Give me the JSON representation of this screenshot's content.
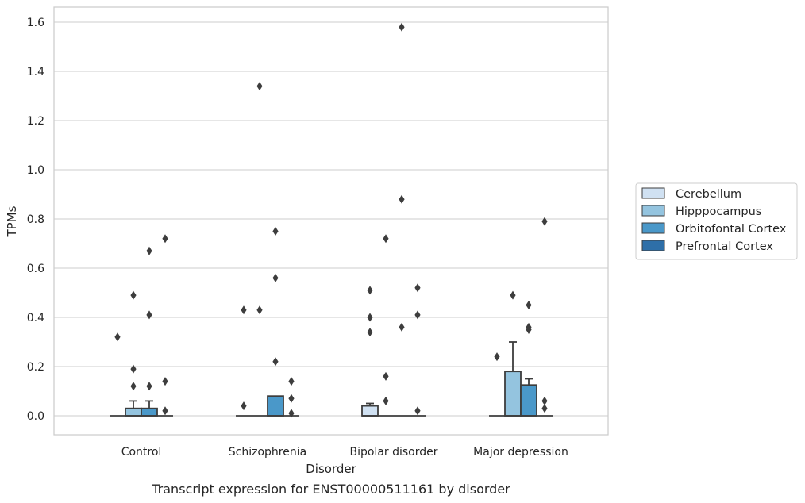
{
  "chart_data": {
    "type": "box",
    "caption": "Transcript expression for ENST00000511161 by disorder",
    "xlabel": "Disorder",
    "ylabel": "TPMs",
    "ylim": [
      -0.08,
      1.66
    ],
    "yticks": [
      0.0,
      0.2,
      0.4,
      0.6,
      0.8,
      1.0,
      1.2,
      1.4,
      1.6
    ],
    "ytick_labels": [
      "0.0",
      "0.2",
      "0.4",
      "0.6",
      "0.8",
      "1.0",
      "1.2",
      "1.4",
      "1.6"
    ],
    "grid": "horizontal",
    "legend_position": "right",
    "categories": [
      "Control",
      "Schizophrenia",
      "Bipolar disorder",
      "Major depression"
    ],
    "series": [
      {
        "name": "Cerebellum",
        "color": "#d0e1f2",
        "boxes": [
          {
            "q1": 0,
            "median": 0,
            "q3": 0,
            "whisker_low": 0,
            "whisker_high": 0,
            "outliers": [
              0.32
            ]
          },
          {
            "q1": 0,
            "median": 0,
            "q3": 0,
            "whisker_low": 0,
            "whisker_high": 0,
            "outliers": [
              0.43,
              0.04
            ]
          },
          {
            "q1": 0,
            "median": 0,
            "q3": 0.04,
            "whisker_low": 0,
            "whisker_high": 0.05,
            "outliers": [
              0.51,
              0.4,
              0.34
            ]
          },
          {
            "q1": 0,
            "median": 0,
            "q3": 0,
            "whisker_low": 0,
            "whisker_high": 0,
            "outliers": [
              0.24
            ]
          }
        ]
      },
      {
        "name": "Hipppocampus",
        "color": "#94c4df",
        "boxes": [
          {
            "q1": 0,
            "median": 0,
            "q3": 0.03,
            "whisker_low": 0,
            "whisker_high": 0.06,
            "outliers": [
              0.49,
              0.19,
              0.12
            ]
          },
          {
            "q1": 0,
            "median": 0,
            "q3": 0,
            "whisker_low": 0,
            "whisker_high": 0,
            "outliers": [
              0.43,
              1.34
            ]
          },
          {
            "q1": 0,
            "median": 0,
            "q3": 0,
            "whisker_low": 0,
            "whisker_high": 0,
            "outliers": [
              0.72,
              0.16,
              0.06
            ]
          },
          {
            "q1": 0,
            "median": 0,
            "q3": 0.18,
            "whisker_low": 0,
            "whisker_high": 0.3,
            "outliers": [
              0.49
            ]
          }
        ]
      },
      {
        "name": "Orbitofontal Cortex",
        "color": "#4a98c9",
        "boxes": [
          {
            "q1": 0,
            "median": 0,
            "q3": 0.03,
            "whisker_low": 0,
            "whisker_high": 0.06,
            "outliers": [
              0.67,
              0.41,
              0.12
            ]
          },
          {
            "q1": 0,
            "median": 0,
            "q3": 0.08,
            "whisker_low": 0,
            "whisker_high": 0.08,
            "outliers": [
              0.75,
              0.56,
              0.22
            ]
          },
          {
            "q1": 0,
            "median": 0,
            "q3": 0,
            "whisker_low": 0,
            "whisker_high": 0,
            "outliers": [
              1.58,
              0.88,
              0.36
            ]
          },
          {
            "q1": 0,
            "median": 0,
            "q3": 0.125,
            "whisker_low": 0,
            "whisker_high": 0.15,
            "outliers": [
              0.45,
              0.36,
              0.35
            ]
          }
        ]
      },
      {
        "name": "Prefrontal Cortex",
        "color": "#2e6fa8",
        "boxes": [
          {
            "q1": 0,
            "median": 0,
            "q3": 0,
            "whisker_low": 0,
            "whisker_high": 0,
            "outliers": [
              0.72,
              0.14,
              0.02
            ]
          },
          {
            "q1": 0,
            "median": 0,
            "q3": 0,
            "whisker_low": 0,
            "whisker_high": 0,
            "outliers": [
              0.14,
              0.07,
              0.01
            ]
          },
          {
            "q1": 0,
            "median": 0,
            "q3": 0,
            "whisker_low": 0,
            "whisker_high": 0,
            "outliers": [
              0.52,
              0.41,
              0.02
            ]
          },
          {
            "q1": 0,
            "median": 0,
            "q3": 0,
            "whisker_low": 0,
            "whisker_high": 0,
            "outliers": [
              0.79,
              0.06,
              0.03
            ]
          }
        ]
      }
    ]
  }
}
